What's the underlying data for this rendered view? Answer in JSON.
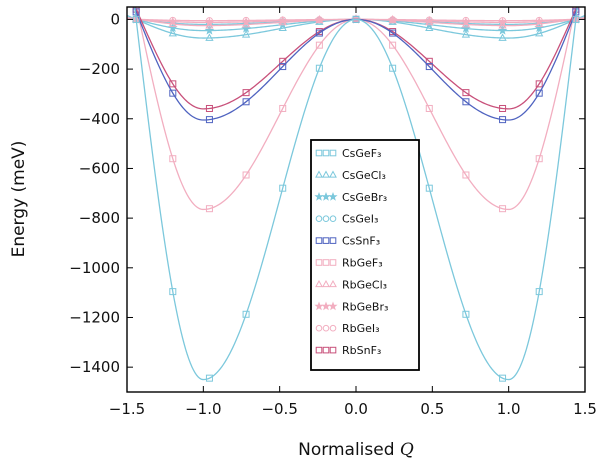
{
  "chart_data": {
    "type": "line",
    "xlabel": "Normalised Q",
    "xlabel_text": "Normalised ",
    "xlabel_symbol": "Q",
    "ylabel": "Energy (meV)",
    "xlim": [
      -1.5,
      1.5
    ],
    "ylim": [
      -1500,
      50
    ],
    "xticks": [
      -1.5,
      -1.0,
      -0.5,
      0.0,
      0.5,
      1.0,
      1.5
    ],
    "xtick_labels": [
      "−1.5",
      "−1.0",
      "−0.5",
      "0.0",
      "0.5",
      "1.0",
      "1.5"
    ],
    "yticks": [
      0,
      -200,
      -400,
      -600,
      -800,
      -1000,
      -1200,
      -1400
    ],
    "ytick_labels": [
      "0",
      "−200",
      "−400",
      "−600",
      "−800",
      "−1000",
      "−1200",
      "−1400"
    ],
    "grid": false,
    "legend_position": "center-bottom",
    "series": [
      {
        "name": "CsGeF₃",
        "color": "#7cc8dc",
        "marker": "square",
        "depth": -1450,
        "cross": 1.44
      },
      {
        "name": "CsGeCl₃",
        "color": "#7cc8dc",
        "marker": "triangle",
        "depth": -75,
        "cross": 1.44
      },
      {
        "name": "CsGeBr₃",
        "color": "#7cc8dc",
        "marker": "star",
        "depth": -45,
        "cross": 1.44
      },
      {
        "name": "CsGeI₃",
        "color": "#7cc8dc",
        "marker": "circle",
        "depth": -20,
        "cross": 1.44
      },
      {
        "name": "CsSnF₃",
        "color": "#4f63c0",
        "marker": "square",
        "depth": -405,
        "cross": 1.42
      },
      {
        "name": "RbGeF₃",
        "color": "#f2aec0",
        "marker": "square",
        "depth": -765,
        "cross": 1.42
      },
      {
        "name": "RbGeCl₃",
        "color": "#f2aec0",
        "marker": "triangle",
        "depth": -25,
        "cross": 1.42
      },
      {
        "name": "RbGeBr₃",
        "color": "#f2aec0",
        "marker": "star",
        "depth": -12,
        "cross": 1.42
      },
      {
        "name": "RbGeI₃",
        "color": "#f2aec0",
        "marker": "circle",
        "depth": -5,
        "cross": 1.42
      },
      {
        "name": "RbSnF₃",
        "color": "#c8507a",
        "marker": "square",
        "depth": -360,
        "cross": 1.41
      }
    ]
  }
}
